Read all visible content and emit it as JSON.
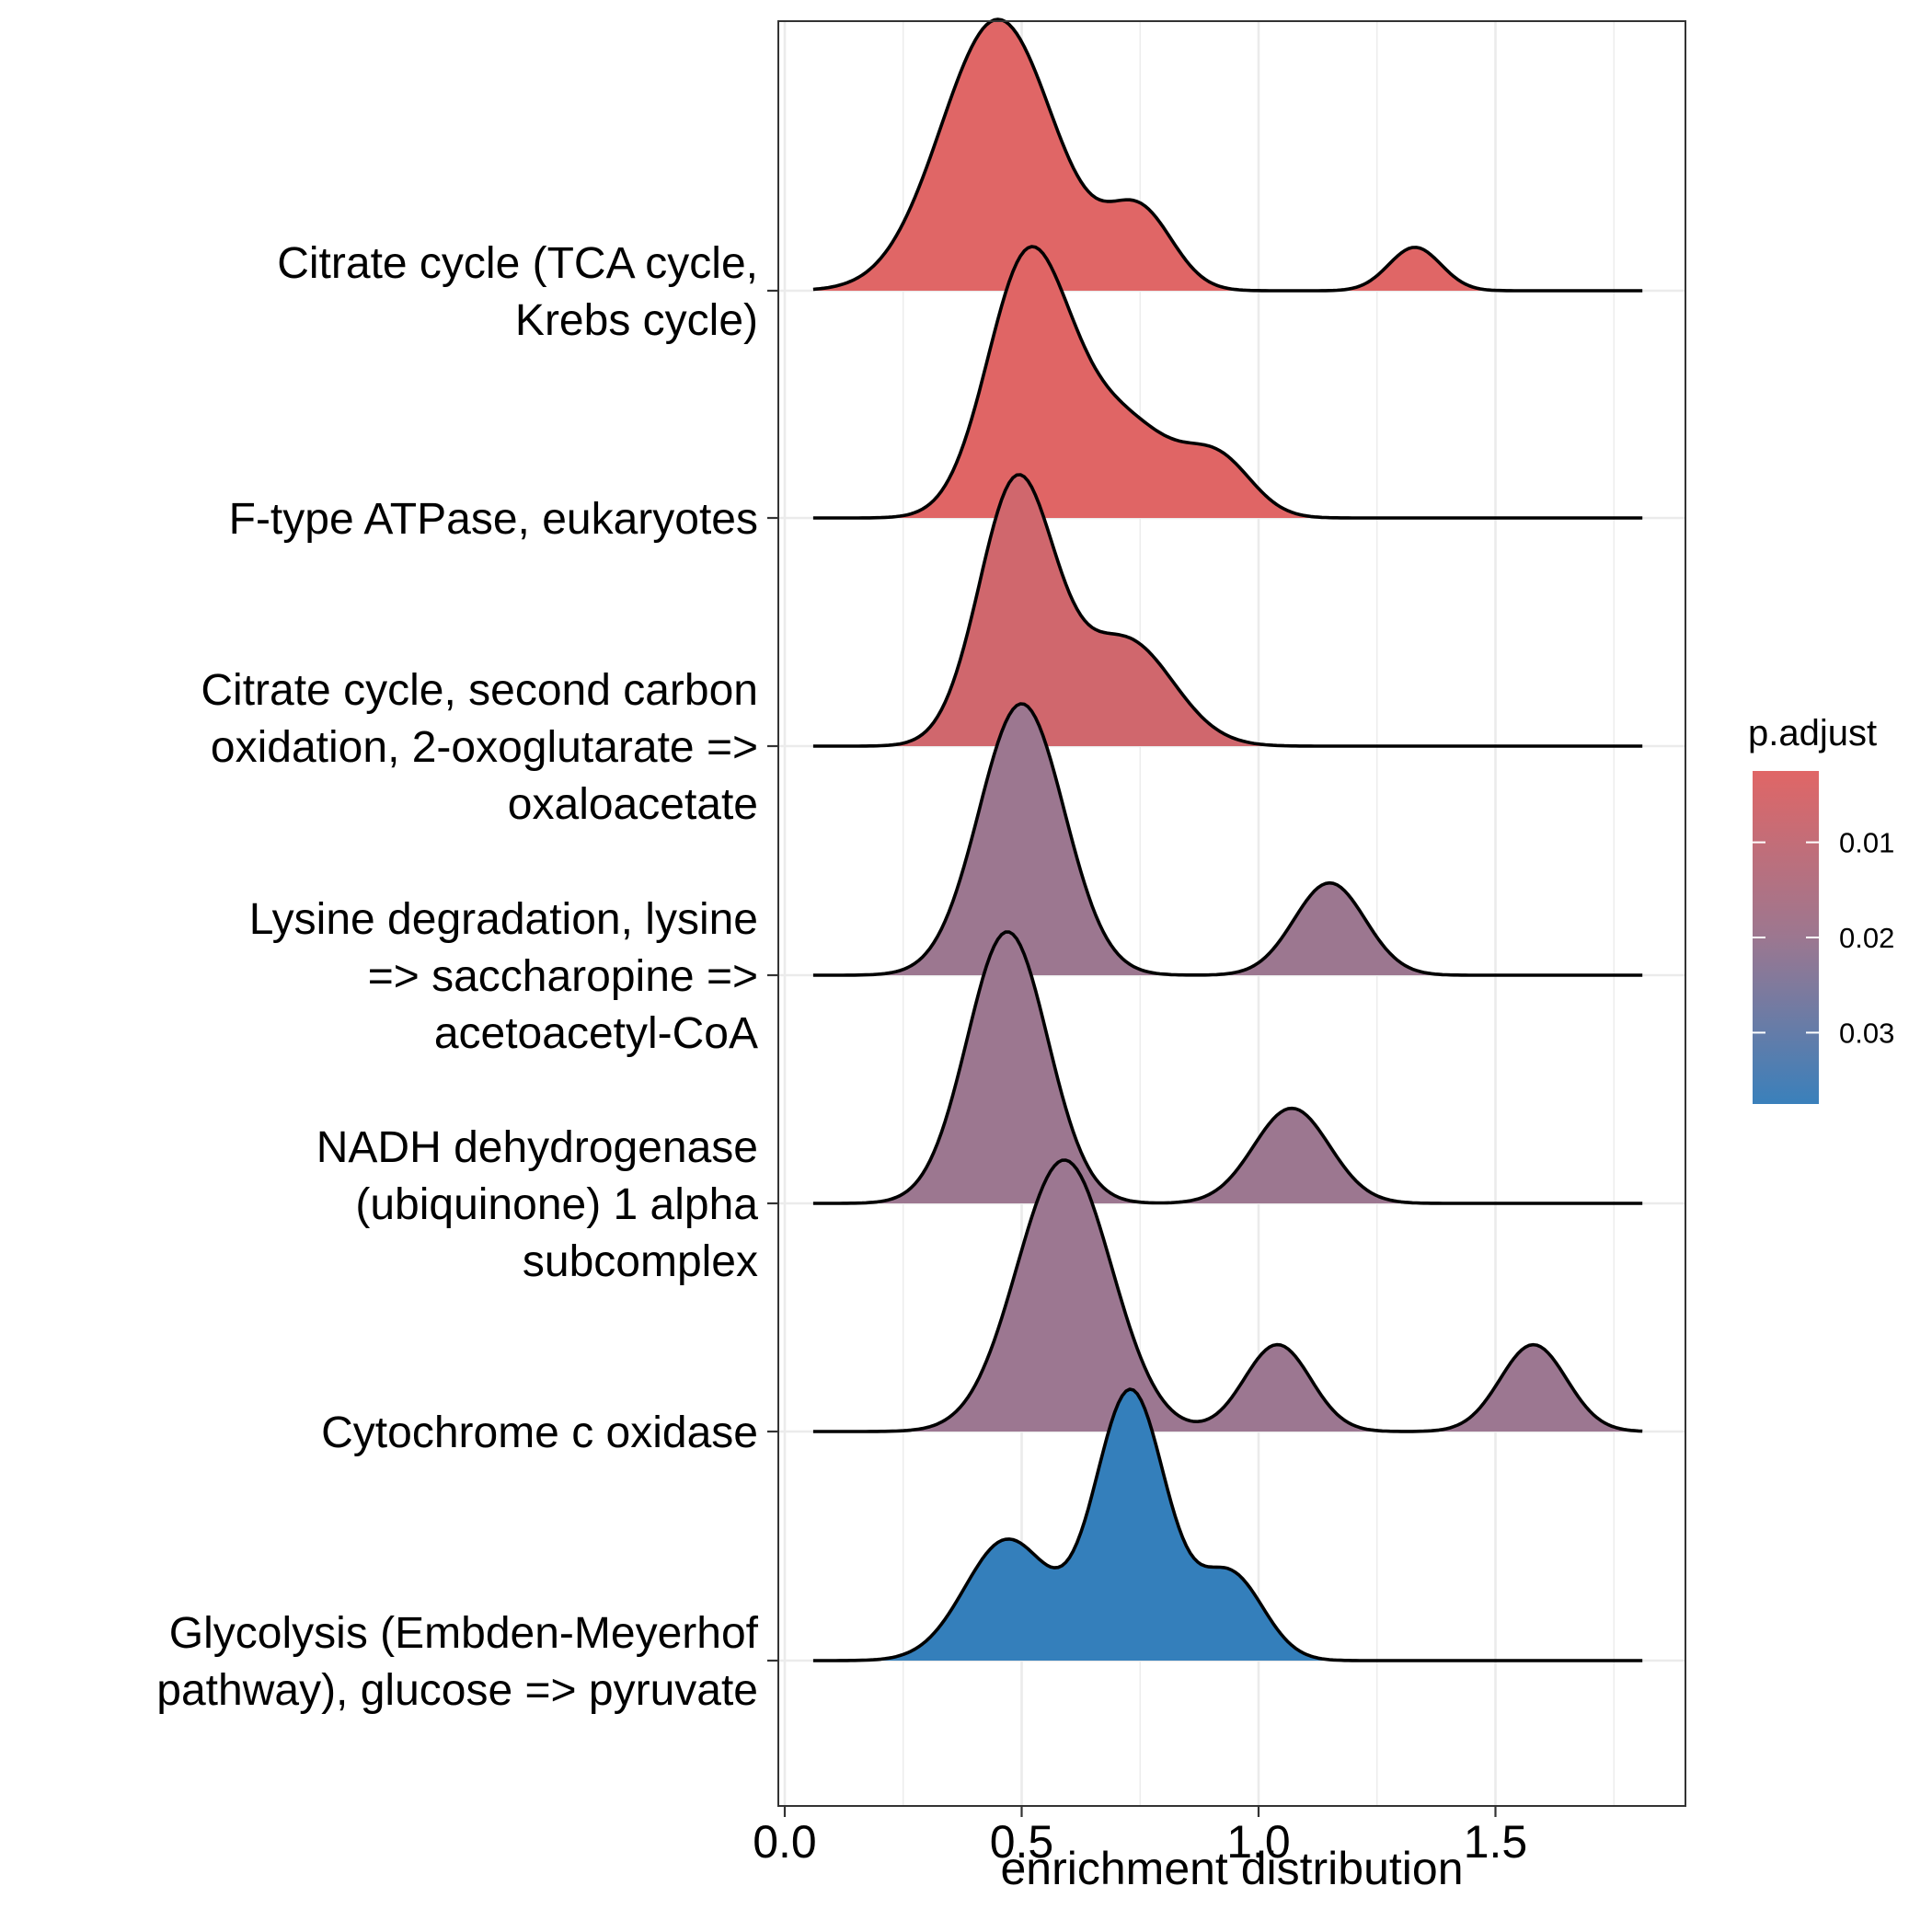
{
  "chart_data": {
    "type": "ridgeline",
    "title": "",
    "xlabel": "enrichment distribution",
    "ylabel": "",
    "xlim": [
      0.0,
      1.88
    ],
    "x_ticks": [
      "0.0",
      "0.5",
      "1.0",
      "1.5"
    ],
    "x_tick_values": [
      0.0,
      0.5,
      1.0,
      1.5
    ],
    "grid": true,
    "legend": {
      "title": "p.adjust",
      "placement": "right",
      "ticks": [
        "0.01",
        "0.02",
        "0.03"
      ],
      "tick_values": [
        0.01,
        0.02,
        0.03
      ],
      "range": [
        0.0025,
        0.0375
      ],
      "color_low": "#e06666",
      "color_high": "#3a80bb"
    },
    "series": [
      {
        "label_lines": [
          "Citrate cycle (TCA cycle,",
          "Krebs cycle)"
        ],
        "p_adjust": 0.0045,
        "fill": "#e06666",
        "components": [
          [
            0.45,
            0.12,
            1.0
          ],
          [
            0.75,
            0.07,
            0.28
          ],
          [
            1.33,
            0.055,
            0.16
          ]
        ]
      },
      {
        "label_lines": [
          "F-type ATPase, eukaryotes"
        ],
        "p_adjust": 0.005,
        "fill": "#e06565",
        "components": [
          [
            0.51,
            0.085,
            1.0
          ],
          [
            0.7,
            0.12,
            0.42
          ],
          [
            0.92,
            0.07,
            0.2
          ]
        ]
      },
      {
        "label_lines": [
          "Citrate cycle, second carbon",
          "oxidation, 2-oxoglutarate =>",
          "oxaloacetate"
        ],
        "p_adjust": 0.0085,
        "fill": "#d0676d",
        "components": [
          [
            0.49,
            0.08,
            1.0
          ],
          [
            0.72,
            0.1,
            0.4
          ]
        ]
      },
      {
        "label_lines": [
          "Lysine degradation, lysine",
          "=> saccharopine =>",
          "acetoacetyl-CoA"
        ],
        "p_adjust": 0.0205,
        "fill": "#9c7790",
        "components": [
          [
            0.5,
            0.09,
            1.0
          ],
          [
            1.15,
            0.075,
            0.34
          ]
        ]
      },
      {
        "label_lines": [
          "NADH dehydrogenase",
          "(ubiquinone) 1 alpha",
          "subcomplex"
        ],
        "p_adjust": 0.0205,
        "fill": "#9c7790",
        "components": [
          [
            0.47,
            0.085,
            1.0
          ],
          [
            1.07,
            0.08,
            0.35
          ]
        ]
      },
      {
        "label_lines": [
          "Cytochrome c oxidase"
        ],
        "p_adjust": 0.021,
        "fill": "#9c7791",
        "components": [
          [
            0.59,
            0.1,
            1.0
          ],
          [
            1.04,
            0.07,
            0.32
          ],
          [
            1.58,
            0.07,
            0.32
          ]
        ]
      },
      {
        "label_lines": [
          "Glycolysis (Embden-Meyerhof",
          "pathway), glucose => pyruvate"
        ],
        "p_adjust": 0.0375,
        "fill": "#347fbb",
        "components": [
          [
            0.73,
            0.075,
            1.0
          ],
          [
            0.47,
            0.09,
            0.45
          ],
          [
            0.94,
            0.07,
            0.32
          ]
        ]
      }
    ]
  }
}
